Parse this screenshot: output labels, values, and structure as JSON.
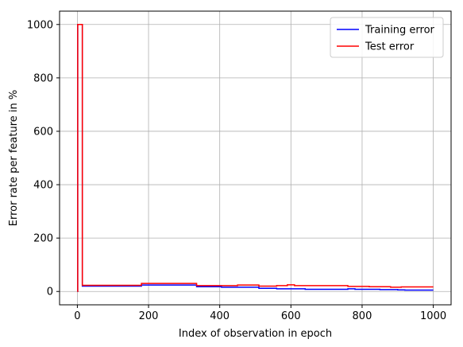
{
  "chart_data": {
    "type": "line",
    "xlabel": "Index of observation in epoch",
    "ylabel": "Error rate per feature in %",
    "xlim": [
      -50,
      1050
    ],
    "ylim": [
      -50,
      1050
    ],
    "xticks": [
      0,
      200,
      400,
      600,
      800,
      1000
    ],
    "yticks": [
      0,
      200,
      400,
      600,
      800,
      1000
    ],
    "xtick_labels": [
      "0",
      "200",
      "400",
      "600",
      "800",
      "1000"
    ],
    "ytick_labels": [
      "0",
      "200",
      "400",
      "600",
      "800",
      "1000"
    ],
    "grid": true,
    "legend_position": "top-right",
    "series": [
      {
        "name": "Training error",
        "color": "#0000ff",
        "drawstyle": "steps-post",
        "x": [
          0,
          1,
          14,
          180,
          335,
          405,
          510,
          560,
          640,
          760,
          780,
          850,
          900,
          920,
          1000
        ],
        "y": [
          0,
          1000,
          20,
          24,
          18,
          16,
          12,
          10,
          8,
          10,
          8,
          7,
          6,
          5,
          5
        ]
      },
      {
        "name": "Test error",
        "color": "#ff0000",
        "drawstyle": "steps-post",
        "x": [
          0,
          1,
          14,
          180,
          335,
          450,
          510,
          560,
          590,
          610,
          630,
          760,
          820,
          880,
          910,
          1000
        ],
        "y": [
          0,
          1000,
          23,
          30,
          22,
          24,
          20,
          22,
          25,
          22,
          22,
          19,
          18,
          16,
          17,
          17
        ]
      }
    ]
  }
}
